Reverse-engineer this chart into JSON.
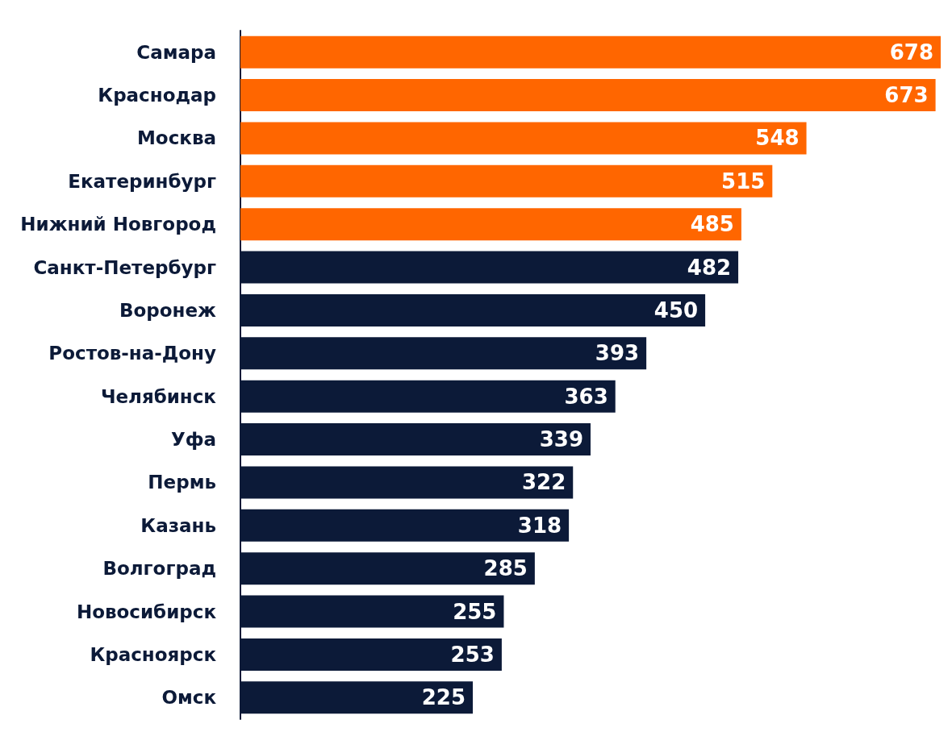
{
  "chart_data": {
    "type": "bar",
    "orientation": "horizontal",
    "categories": [
      "Самара",
      "Краснодар",
      "Москва",
      "Екатеринбург",
      "Нижний Новгород",
      "Санкт-Петербург",
      "Воронеж",
      "Ростов-на-Дону",
      "Челябинск",
      "Уфа",
      "Пермь",
      "Казань",
      "Волгоград",
      "Новосибирск",
      "Красноярск",
      "Омск"
    ],
    "values": [
      678,
      673,
      548,
      515,
      485,
      482,
      450,
      393,
      363,
      339,
      322,
      318,
      285,
      255,
      253,
      225
    ],
    "colors": [
      "#ff6600",
      "#ff6600",
      "#ff6600",
      "#ff6600",
      "#ff6600",
      "#0c1a38",
      "#0c1a38",
      "#0c1a38",
      "#0c1a38",
      "#0c1a38",
      "#0c1a38",
      "#0c1a38",
      "#0c1a38",
      "#0c1a38",
      "#0c1a38",
      "#0c1a38"
    ],
    "data_labels": true,
    "grid": false
  }
}
